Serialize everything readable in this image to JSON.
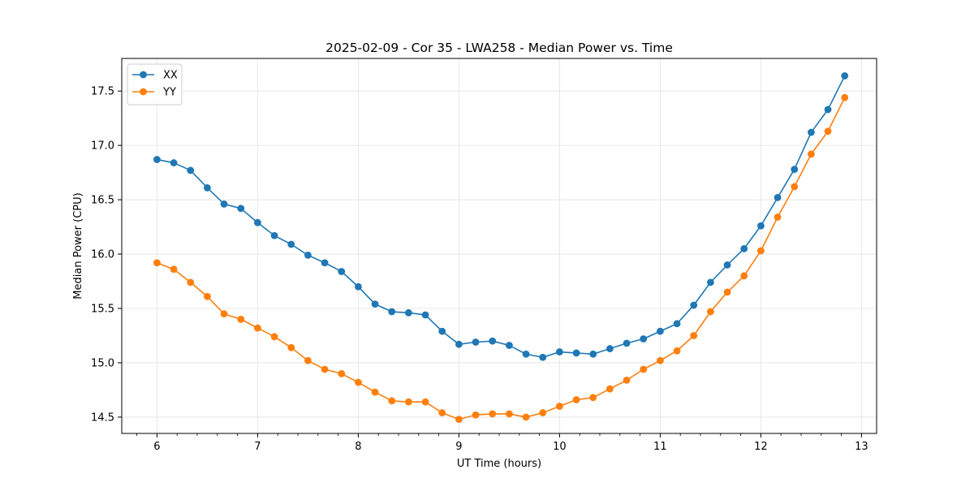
{
  "chart_data": {
    "type": "line",
    "title": "2025-02-09 - Cor 35 - LWA258 - Median Power vs. Time",
    "xlabel": "UT Time (hours)",
    "ylabel": "Median Power (CPU)",
    "xlim": [
      5.65,
      13.15
    ],
    "ylim": [
      14.35,
      17.8
    ],
    "xticks": [
      6,
      7,
      8,
      9,
      10,
      11,
      12,
      13
    ],
    "xtick_labels": [
      "6",
      "7",
      "8",
      "9",
      "10",
      "11",
      "12",
      "13"
    ],
    "yticks": [
      14.5,
      15.0,
      15.5,
      16.0,
      16.5,
      17.0,
      17.5
    ],
    "ytick_labels": [
      "14.5",
      "15.0",
      "15.5",
      "16.0",
      "16.5",
      "17.0",
      "17.5"
    ],
    "grid": true,
    "legend_position": "top-left",
    "x": [
      6.0,
      6.1667,
      6.3333,
      6.5,
      6.6667,
      6.8333,
      7.0,
      7.1667,
      7.3333,
      7.5,
      7.6667,
      7.8333,
      8.0,
      8.1667,
      8.3333,
      8.5,
      8.6667,
      8.8333,
      9.0,
      9.1667,
      9.3333,
      9.5,
      9.6667,
      9.8333,
      10.0,
      10.1667,
      10.3333,
      10.5,
      10.6667,
      10.8333,
      11.0,
      11.1667,
      11.3333,
      11.5,
      11.6667,
      11.8333,
      12.0,
      12.1667,
      12.3333,
      12.5,
      12.6667,
      12.8333
    ],
    "series": [
      {
        "name": "XX",
        "color": "#1f77b4",
        "values": [
          16.87,
          16.84,
          16.77,
          16.61,
          16.46,
          16.42,
          16.29,
          16.17,
          16.09,
          15.99,
          15.92,
          15.84,
          15.7,
          15.54,
          15.47,
          15.46,
          15.44,
          15.29,
          15.17,
          15.19,
          15.2,
          15.16,
          15.08,
          15.05,
          15.1,
          15.09,
          15.08,
          15.13,
          15.18,
          15.22,
          15.29,
          15.36,
          15.53,
          15.74,
          15.9,
          16.05,
          16.26,
          16.52,
          16.78,
          17.12,
          17.33,
          17.64
        ]
      },
      {
        "name": "YY",
        "color": "#ff7f0e",
        "values": [
          15.92,
          15.86,
          15.74,
          15.61,
          15.45,
          15.4,
          15.32,
          15.24,
          15.14,
          15.02,
          14.94,
          14.9,
          14.82,
          14.73,
          14.65,
          14.64,
          14.64,
          14.54,
          14.48,
          14.52,
          14.53,
          14.53,
          14.5,
          14.54,
          14.6,
          14.66,
          14.68,
          14.76,
          14.84,
          14.94,
          15.02,
          15.11,
          15.25,
          15.47,
          15.65,
          15.8,
          16.03,
          16.34,
          16.62,
          16.92,
          17.13,
          17.44
        ]
      }
    ]
  }
}
